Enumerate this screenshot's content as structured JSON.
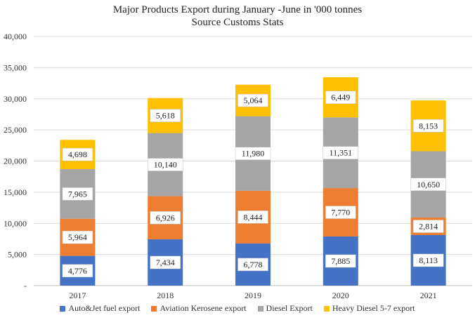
{
  "chart_data": {
    "type": "bar",
    "stacked": true,
    "title": "Major Products Export during January -June in '000 tonnes",
    "subtitle": "Source Customs Stats",
    "categories": [
      "2017",
      "2018",
      "2019",
      "2020",
      "2021"
    ],
    "series": [
      {
        "name": "Auto&Jet fuel export",
        "color": "#4472C4",
        "values": [
          4776,
          7434,
          6778,
          7885,
          8113
        ],
        "labels": [
          "4,776",
          "7,434",
          "6,778",
          "7,885",
          "8,113"
        ]
      },
      {
        "name": "Aviation Kerosene export",
        "color": "#ED7D31",
        "values": [
          5964,
          6926,
          8444,
          7770,
          2814
        ],
        "labels": [
          "5,964",
          "6,926",
          "8,444",
          "7,770",
          "2,814"
        ]
      },
      {
        "name": "Diesel Export",
        "color": "#A5A5A5",
        "values": [
          7965,
          10140,
          11980,
          11351,
          10650
        ],
        "labels": [
          "7,965",
          "10,140",
          "11,980",
          "11,351",
          "10,650"
        ]
      },
      {
        "name": "Heavy Diesel 5-7 export",
        "color": "#FFC000",
        "values": [
          4698,
          5618,
          5064,
          6449,
          8153
        ],
        "labels": [
          "4,698",
          "5,618",
          "5,064",
          "6,449",
          "8,153"
        ]
      }
    ],
    "ylim": [
      0,
      40000
    ],
    "yticks": [
      0,
      5000,
      10000,
      15000,
      20000,
      25000,
      30000,
      35000,
      40000
    ],
    "ytick_labels": [
      "-",
      "5,000",
      "10,000",
      "15,000",
      "20,000",
      "25,000",
      "30,000",
      "35,000",
      "40,000"
    ],
    "grid": true,
    "legend_position": "bottom",
    "xlabel": "",
    "ylabel": ""
  }
}
